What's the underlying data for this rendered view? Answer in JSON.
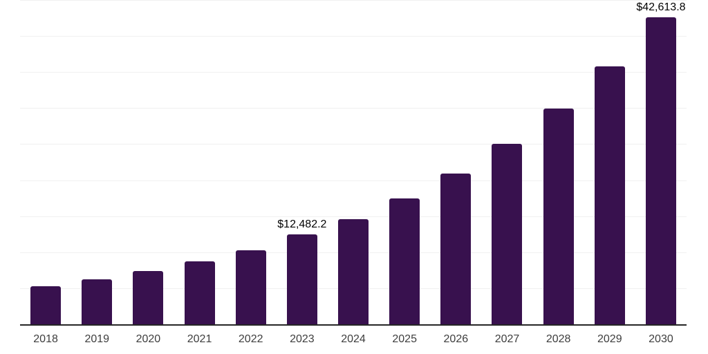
{
  "chart_data": {
    "type": "bar",
    "title": "",
    "xlabel": "",
    "ylabel": "",
    "categories": [
      "2018",
      "2019",
      "2020",
      "2021",
      "2022",
      "2023",
      "2024",
      "2025",
      "2026",
      "2027",
      "2028",
      "2029",
      "2030"
    ],
    "values": [
      5280,
      6240,
      7390,
      8730,
      10270,
      12482.2,
      14600,
      17500,
      20900,
      25000,
      29900,
      35750,
      42613.8
    ],
    "data_labels": [
      "",
      "",
      "",
      "",
      "",
      "$12,482.2",
      "",
      "",
      "",
      "",
      "",
      "",
      "$42,613.8"
    ],
    "ylim": [
      0,
      45000
    ],
    "gridline_step": 5000,
    "grid": "horizontal",
    "legend": "none",
    "colors": {
      "bar": "#38114E",
      "axis_line": "#262626",
      "gridline": "#F0F0F0",
      "tick_label": "#3D3D3D",
      "data_label": "#000000",
      "background": "#FFFFFF"
    }
  }
}
